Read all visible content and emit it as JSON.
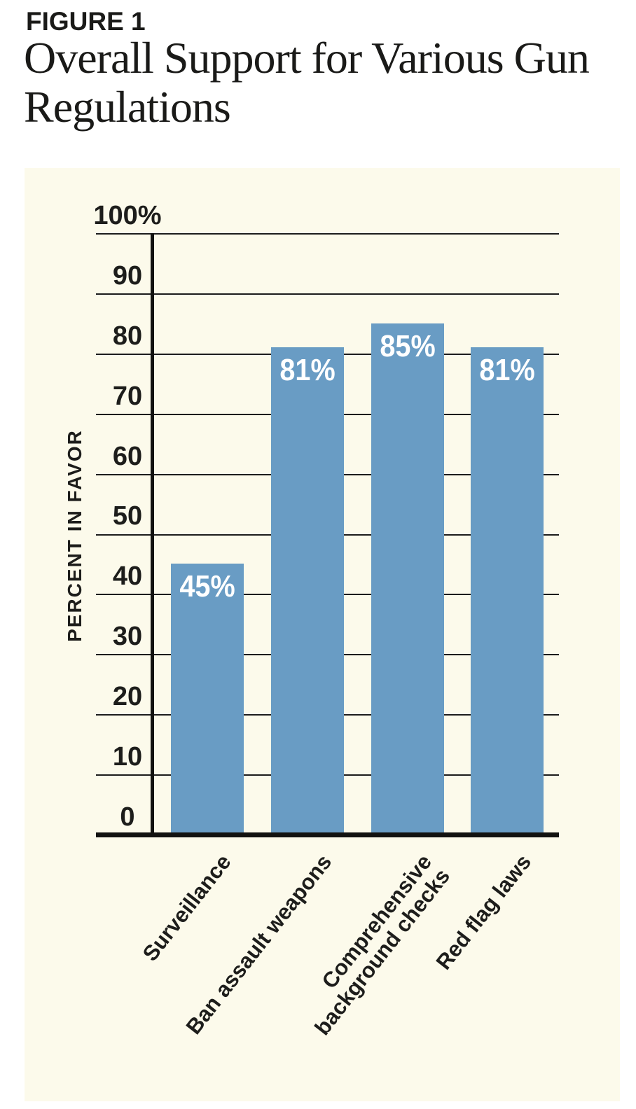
{
  "header": {
    "figure_label": "FIGURE 1",
    "title": "Overall Support for Various Gun Regulations"
  },
  "chart_data": {
    "type": "bar",
    "title": "Overall Support for Various Gun Regulations",
    "categories": [
      "Surveillance",
      "Ban assault weapons",
      "Comprehensive background checks",
      "Red flag laws"
    ],
    "category_display": [
      "Surveillance",
      "Ban assault weapons",
      "Comprehensive\nbackground checks",
      "Red flag laws"
    ],
    "values": [
      45,
      81,
      85,
      81
    ],
    "value_labels": [
      "45%",
      "81%",
      "85%",
      "81%"
    ],
    "xlabel": "",
    "ylabel": "PERCENT IN FAVOR",
    "ylim": [
      0,
      100
    ],
    "ytick_step": 10,
    "ytick_labels": [
      "100%",
      "90",
      "80",
      "70",
      "60",
      "50",
      "40",
      "30",
      "20",
      "10",
      "0"
    ],
    "grid": true,
    "legend": "none",
    "colors": {
      "bar": "#699CC4",
      "panel_background": "#FCFAEB",
      "gridline": "#1C1C1C",
      "axis": "#121210",
      "text": "#1D1D1B",
      "bar_label_text": "#FFFFFF",
      "page_background": "#FFFFFF"
    }
  }
}
